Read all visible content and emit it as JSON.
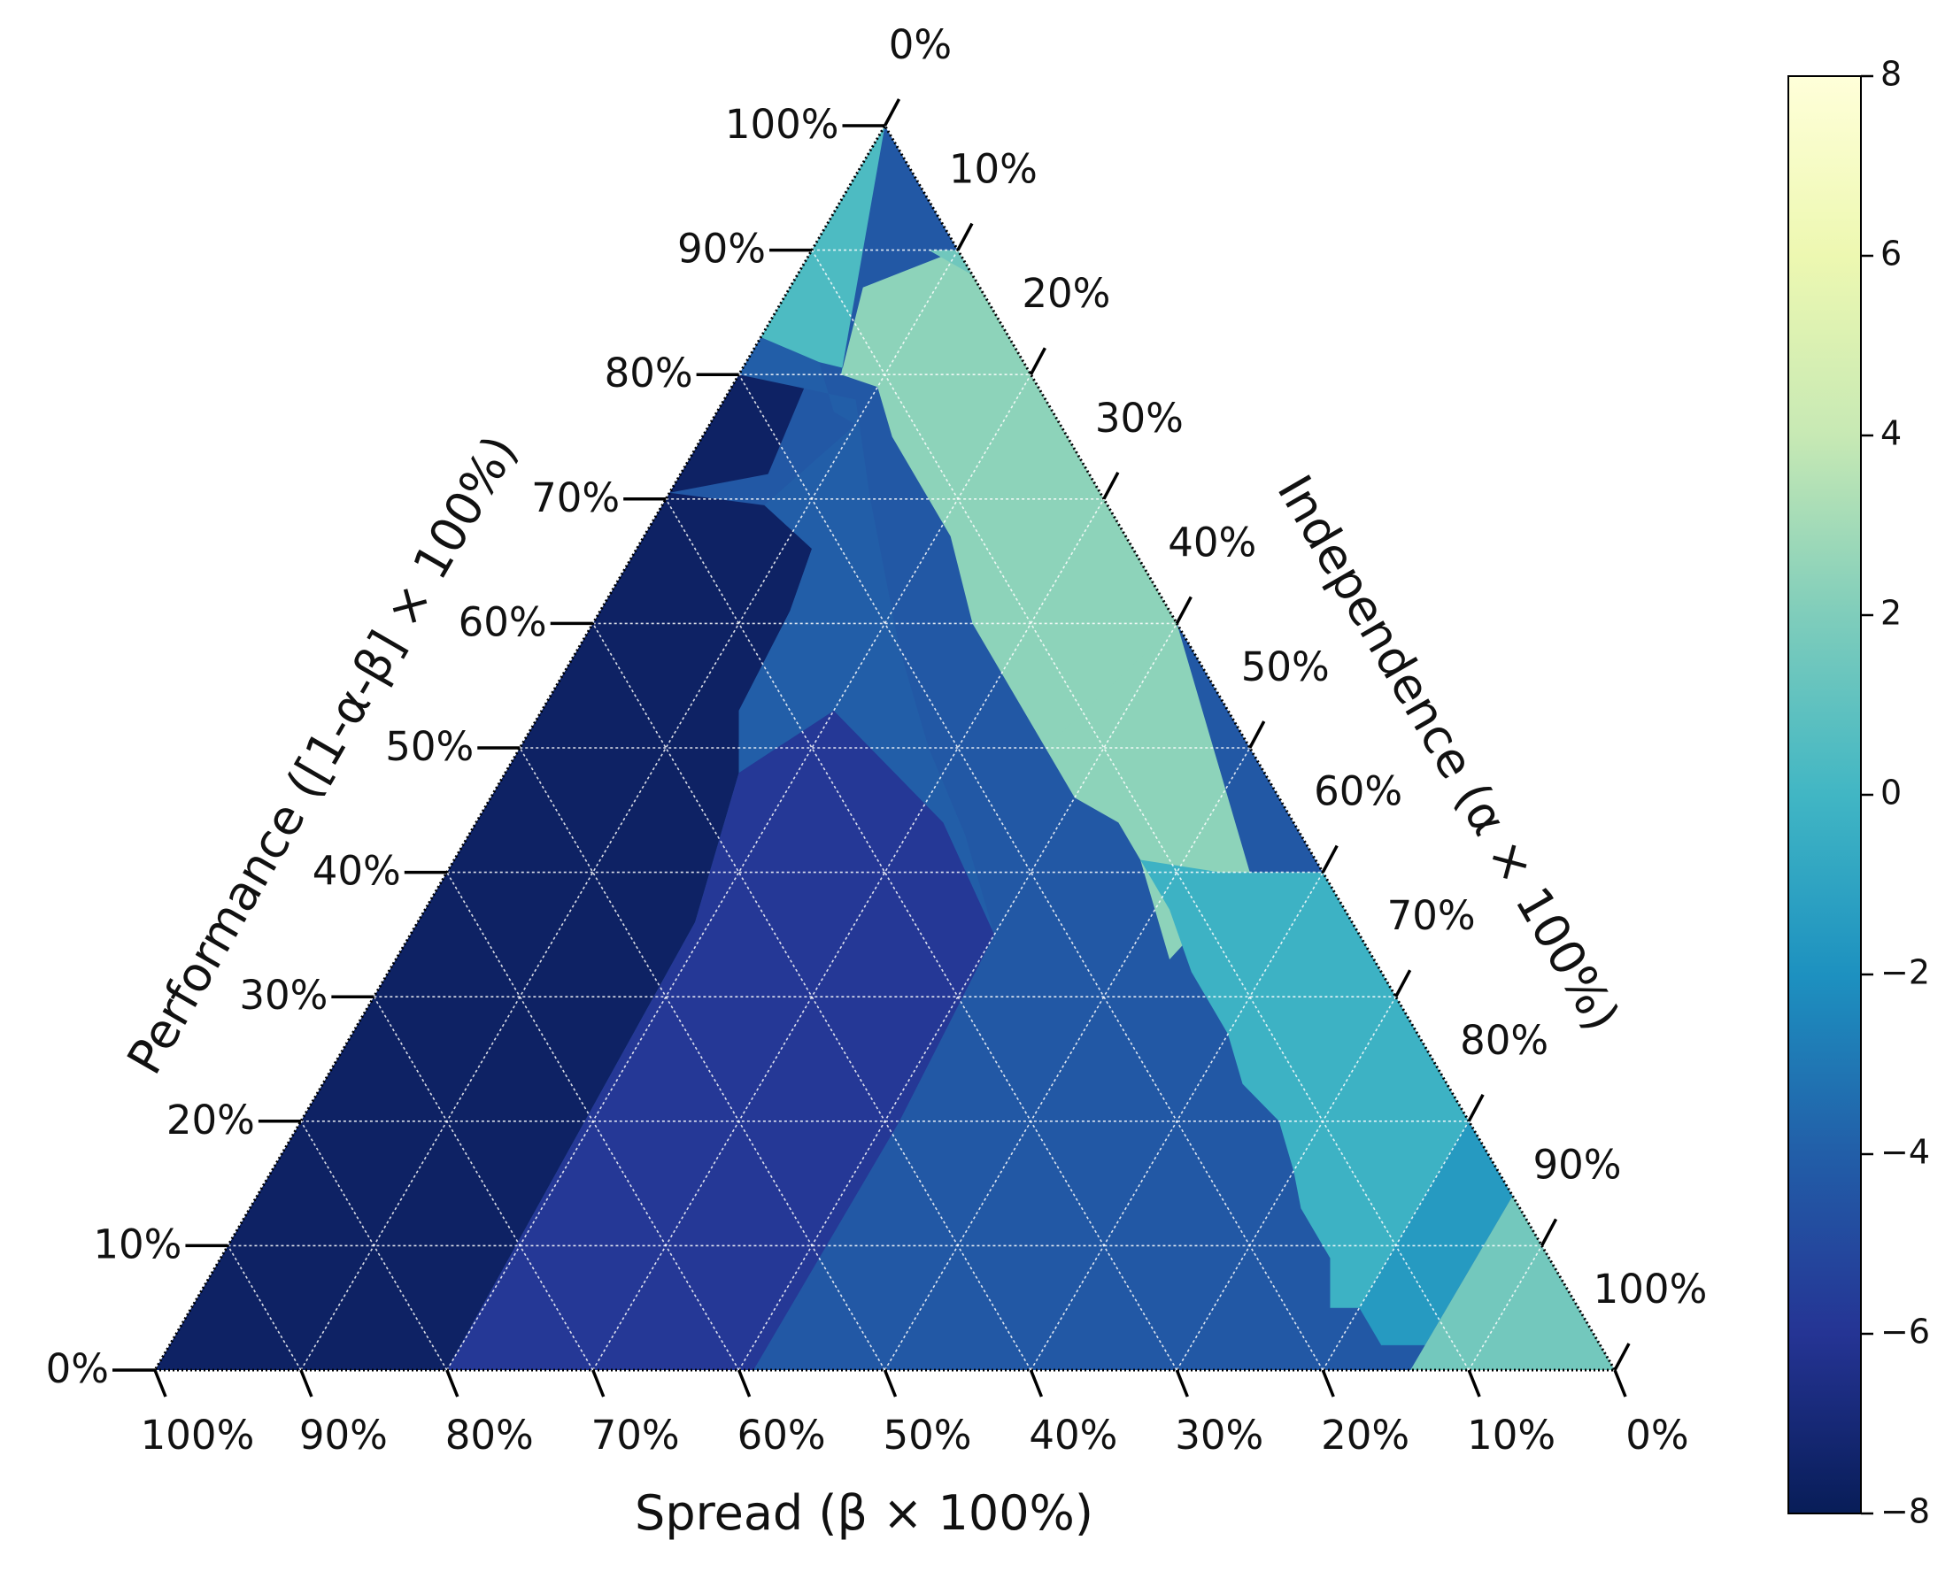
{
  "chart_data": {
    "type": "heatmap",
    "subtype": "ternary",
    "title": "",
    "axes": {
      "bottom": {
        "label": "Spread  (β × 100%)",
        "ticks": [
          "100%",
          "90%",
          "80%",
          "70%",
          "60%",
          "50%",
          "40%",
          "30%",
          "20%",
          "10%",
          "0%"
        ]
      },
      "left": {
        "label": "Performance ([1-α-β] × 100%)",
        "ticks": [
          "0%",
          "10%",
          "20%",
          "30%",
          "40%",
          "50%",
          "60%",
          "70%",
          "80%",
          "90%",
          "100%"
        ]
      },
      "right": {
        "label": "Independence (α × 100%)",
        "ticks": [
          "0%",
          "10%",
          "20%",
          "30%",
          "40%",
          "50%",
          "60%",
          "70%",
          "80%",
          "90%",
          "100%"
        ]
      }
    },
    "grid": true,
    "colormap": "YlGnBu",
    "colors": [
      "#081d58",
      "#253494",
      "#225ea8",
      "#1d91c0",
      "#41b6c4",
      "#7fcdbb",
      "#c7e9b4",
      "#edf8b1",
      "#ffffd9"
    ],
    "colorbar": {
      "range": [
        -8,
        8
      ],
      "ticks": [
        8,
        6,
        4,
        2,
        0,
        -2,
        -4,
        -6,
        -8
      ],
      "tick_labels": [
        "8",
        "6",
        "4",
        "2",
        "0",
        "−2",
        "−4",
        "−6",
        "−8"
      ]
    },
    "regions": [
      {
        "value": -7.5,
        "description_note": "",
        "alpha": [
          0.0,
          0.45
        ],
        "spread_min": 0.6
      },
      {
        "value": -6.0,
        "spread_range": [
          0.4,
          0.6
        ]
      },
      {
        "value": -4.2,
        "spread_range": [
          0.0,
          0.4
        ]
      },
      {
        "value": -1.0
      },
      {
        "value": 0.2
      },
      {
        "value": 2.0
      }
    ],
    "region_polygons": [
      {
        "value": -7.4,
        "points": [
          [
            0,
            1
          ],
          [
            0,
            0.32
          ],
          [
            0.32,
            0.53
          ],
          [
            0.4,
            0.6
          ],
          [
            0.45,
            0.6
          ],
          [
            0.2,
            0.8
          ],
          [
            0,
            0.8
          ]
        ]
      },
      {
        "value": -5.8,
        "points": [
          [
            0,
            0.6
          ],
          [
            0.4,
            0.6
          ],
          [
            0.45,
            0.55
          ],
          [
            0.55,
            0.4
          ],
          [
            0.6,
            0.4
          ],
          [
            0,
            0.4
          ]
        ]
      },
      {
        "value": -4.3,
        "points": [
          [
            0,
            0.4
          ],
          [
            0.6,
            0.4
          ],
          [
            0.65,
            0.35
          ],
          [
            0.72,
            0.28
          ],
          [
            0.75,
            0.2
          ],
          [
            0.88,
            0.1
          ],
          [
            0.92,
            0.08
          ],
          [
            0.92,
            0
          ],
          [
            0,
            0
          ]
        ]
      },
      {
        "value": -3.7,
        "points": [
          [
            0.2,
            0.8
          ],
          [
            0.45,
            0.6
          ],
          [
            0.55,
            0.4
          ],
          [
            0.6,
            0.35
          ],
          [
            0.5,
            0.3
          ],
          [
            0.25,
            0.55
          ],
          [
            0.15,
            0.75
          ],
          [
            0.1,
            0.88
          ]
        ]
      },
      {
        "value": -1.2,
        "points": [
          [
            0.6,
            0.4
          ],
          [
            0.65,
            0.35
          ],
          [
            0.72,
            0.28
          ],
          [
            0.75,
            0.2
          ],
          [
            0.88,
            0.1
          ],
          [
            0.92,
            0.08
          ],
          [
            0.92,
            0
          ],
          [
            0.96,
            0
          ],
          [
            0.96,
            0.04
          ],
          [
            0.7,
            0.3
          ],
          [
            0.6,
            0.4
          ]
        ]
      },
      {
        "value": 0.0,
        "points": [
          [
            0.1,
            0.9
          ],
          [
            0.15,
            0.8
          ],
          [
            0,
            0.8
          ],
          [
            0,
            1
          ]
        ]
      },
      {
        "value": 2.5,
        "points": [
          [
            0.18,
            0.8
          ],
          [
            0.3,
            0.68
          ],
          [
            0.5,
            0.45
          ],
          [
            0.55,
            0.42
          ],
          [
            0.62,
            0.38
          ],
          [
            0.6,
            0.4
          ],
          [
            0.4,
            0.6
          ],
          [
            0.2,
            0.8
          ]
        ]
      },
      {
        "value": 1.5,
        "points": [
          [
            0.96,
            0
          ],
          [
            1,
            0
          ],
          [
            0.96,
            0.04
          ]
        ]
      }
    ]
  }
}
